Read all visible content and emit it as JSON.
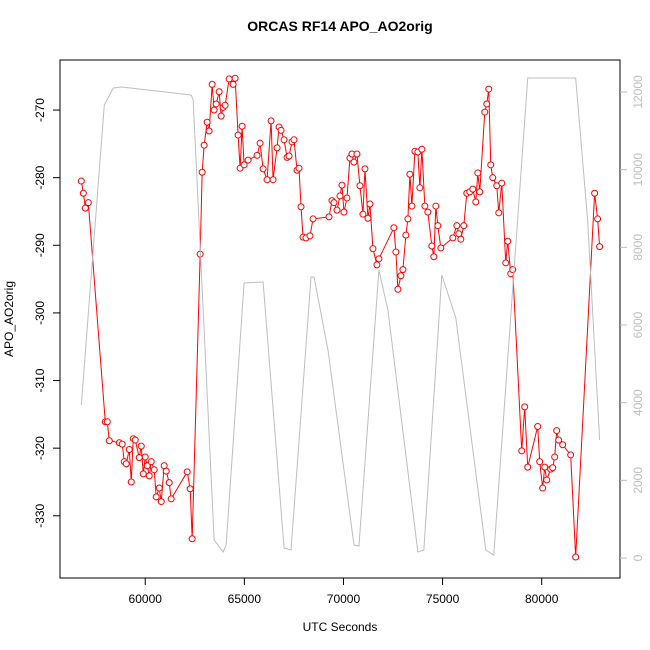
{
  "chart_data": {
    "type": "line",
    "title": "ORCAS RF14 APO_AO2orig",
    "x_label": "UTC Seconds",
    "y_label": "APO_AO2orig",
    "xlim": [
      55700,
      83950
    ],
    "xticks": [
      60000,
      65000,
      70000,
      75000,
      80000
    ],
    "ylim": [
      -339.2,
      -262.6
    ],
    "yticks": [
      -330,
      -320,
      -310,
      -300,
      -290,
      -280,
      -270
    ],
    "y2lim": [
      -515,
      12824
    ],
    "y2ticks": [
      0,
      2000,
      4000,
      6000,
      8000,
      10000,
      12000
    ],
    "series": [
      {
        "color": "#ff0000",
        "markers": true,
        "x": [
          56776,
          56877,
          56977,
          57128,
          57985,
          58086,
          58186,
          58690,
          58841,
          58942,
          59043,
          59194,
          59295,
          59395,
          59496,
          59698,
          59798,
          59899,
          60000,
          60101,
          60202,
          60302,
          60453,
          60554,
          60705,
          60806,
          60957,
          61058,
          61209,
          61310,
          62116,
          62267,
          62368,
          62771,
          62872,
          62972,
          63123,
          63224,
          63375,
          63476,
          63577,
          63728,
          63829,
          63929,
          64030,
          64232,
          64433,
          64534,
          64685,
          64786,
          64887,
          64987,
          65189,
          65642,
          65793,
          65945,
          66146,
          66348,
          66448,
          66650,
          66751,
          66851,
          67003,
          67154,
          67254,
          67405,
          67506,
          67657,
          67758,
          67859,
          67960,
          68111,
          68312,
          68464,
          69270,
          69421,
          69521,
          69673,
          69824,
          69924,
          70025,
          70176,
          70327,
          70428,
          70529,
          70680,
          70831,
          70982,
          71083,
          71234,
          71335,
          71486,
          71687,
          71788,
          72544,
          72645,
          72746,
          72897,
          72998,
          73149,
          73250,
          73350,
          73451,
          73602,
          73753,
          73854,
          73955,
          74106,
          74257,
          74458,
          74559,
          74660,
          74761,
          74912,
          75516,
          75718,
          75818,
          75919,
          76070,
          76222,
          76373,
          76524,
          76675,
          76776,
          76876,
          77128,
          77229,
          77330,
          77430,
          77531,
          77733,
          77834,
          77985,
          78186,
          78286,
          78438,
          78539,
          78992,
          79143,
          79295,
          79798,
          79899,
          80050,
          80151,
          80252,
          80453,
          80554,
          80655,
          80756,
          80856,
          81058,
          81461,
          81713,
          82670,
          82821,
          82922
        ],
        "values": [
          -280.5,
          -282.3,
          -284.5,
          -283.7,
          -316.1,
          -316.1,
          -318.9,
          -319.2,
          -319.4,
          -322.0,
          -322.3,
          -320.2,
          -325.0,
          -318.6,
          -318.8,
          -321.4,
          -319.7,
          -323.8,
          -321.3,
          -322.6,
          -324.1,
          -322.0,
          -323.2,
          -327.2,
          -325.9,
          -327.9,
          -322.6,
          -323.4,
          -325.1,
          -327.5,
          -323.5,
          -326.0,
          -333.4,
          -291.3,
          -279.2,
          -275.2,
          -271.8,
          -273.1,
          -266.2,
          -270.0,
          -269.1,
          -267.3,
          -270.9,
          -269.6,
          -269.3,
          -265.4,
          -266.2,
          -265.3,
          -273.7,
          -278.6,
          -272.4,
          -278.1,
          -277.4,
          -276.7,
          -274.9,
          -278.7,
          -280.3,
          -271.6,
          -280.3,
          -275.6,
          -272.5,
          -273.0,
          -274.4,
          -277.0,
          -276.8,
          -274.7,
          -274.4,
          -278.9,
          -278.6,
          -284.3,
          -288.8,
          -288.9,
          -288.6,
          -286.1,
          -285.8,
          -283.4,
          -283.7,
          -284.8,
          -282.7,
          -281.1,
          -285.1,
          -283.0,
          -277.1,
          -276.5,
          -277.7,
          -276.5,
          -281.2,
          -285.4,
          -278.7,
          -286.0,
          -283.9,
          -290.5,
          -292.9,
          -292.0,
          -287.4,
          -291.0,
          -296.5,
          -294.5,
          -293.6,
          -288.5,
          -286.1,
          -279.5,
          -284.2,
          -276.1,
          -276.2,
          -281.5,
          -275.8,
          -284.2,
          -285.1,
          -290.1,
          -291.7,
          -284.2,
          -287.1,
          -290.4,
          -288.9,
          -287.1,
          -288.3,
          -289.1,
          -287.1,
          -282.3,
          -282.1,
          -281.7,
          -283.6,
          -279.3,
          -282.1,
          -270.3,
          -269.1,
          -266.9,
          -278.1,
          -280.0,
          -281.2,
          -285.2,
          -280.8,
          -292.6,
          -289.4,
          -294.2,
          -293.6,
          -320.4,
          -313.9,
          -322.8,
          -316.8,
          -322.0,
          -325.9,
          -322.8,
          -324.7,
          -323.1,
          -322.9,
          -321.3,
          -317.4,
          -318.8,
          -319.5,
          -321.0,
          -336.1,
          -282.3,
          -286.1,
          -290.2
        ]
      },
      {
        "color": "#bebebe",
        "axis": "y2",
        "markers": false,
        "x": [
          56776,
          57935,
          58388,
          58791,
          62317,
          62418,
          63476,
          63929,
          64081,
          64987,
          65945,
          67003,
          67355,
          68363,
          68514,
          69219,
          70529,
          70781,
          71788,
          72242,
          73753,
          74055,
          74962,
          75668,
          77179,
          77582,
          79295,
          81713,
          82317,
          82922
        ],
        "values": [
          3940,
          11666,
          12104,
          12130,
          11924,
          11795,
          464,
          155,
          335,
          7082,
          7108,
          258,
          206,
          7237,
          7237,
          5357,
          335,
          309,
          7417,
          6387,
          155,
          206,
          7288,
          6181,
          206,
          77,
          12361,
          12361,
          8705,
          3039
        ]
      }
    ]
  }
}
